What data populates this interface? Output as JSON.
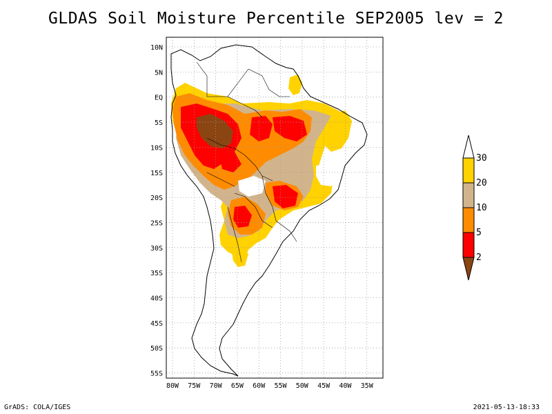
{
  "title": "GLDAS Soil Moisture Percentile SEP2005 lev = 2",
  "footer_left": "GrADS: COLA/IGES",
  "footer_right": "2021-05-13-18:33",
  "lat_labels": [
    "10N",
    "5N",
    "EQ",
    "5S",
    "10S",
    "15S",
    "20S",
    "25S",
    "30S",
    "35S",
    "40S",
    "45S",
    "50S",
    "55S"
  ],
  "lon_labels": [
    "80W",
    "75W",
    "70W",
    "65W",
    "60W",
    "55W",
    "50W",
    "45W",
    "40W",
    "35W"
  ],
  "colorbar": {
    "labels": [
      "30",
      "20",
      "10",
      "5",
      "2"
    ],
    "colors": {
      "above_30": "#ffffff",
      "c20_30": "#ffd200",
      "c10_20": "#d2b48c",
      "c5_10": "#ff8c00",
      "c2_5": "#ff0000",
      "below_2": "#8b4513"
    }
  }
}
